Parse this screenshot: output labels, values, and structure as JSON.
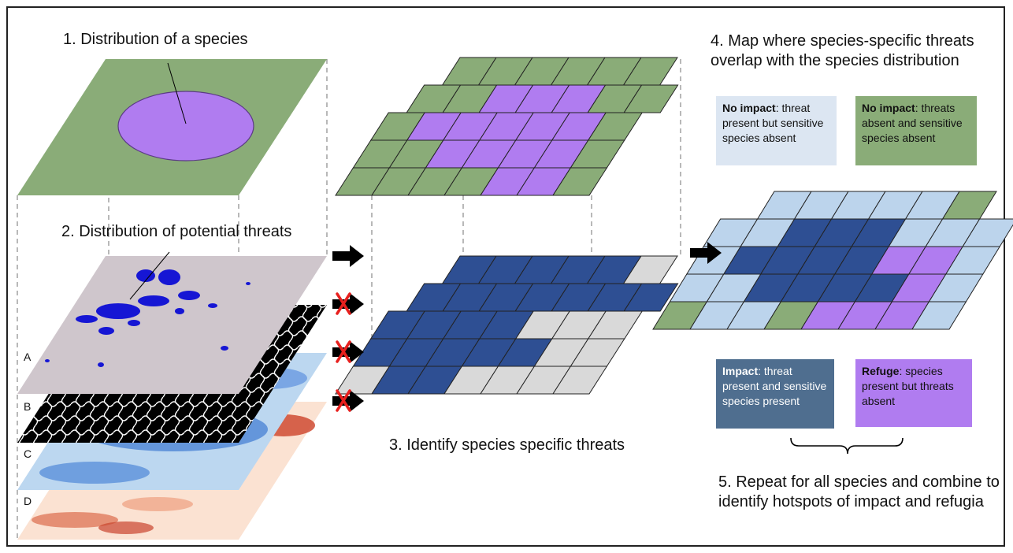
{
  "step1": {
    "text": "1. Distribution of a species"
  },
  "step2": {
    "text": "2. Distribution of potential threats"
  },
  "step3": {
    "text": "3. Identify species specific threats"
  },
  "step4": {
    "text": "4. Map where species-specific threats overlap with the species distribution"
  },
  "step5": {
    "text": "5. Repeat for all species and combine to identify hotspots of impact and refugia"
  },
  "layers": [
    "A",
    "B",
    "C",
    "D"
  ],
  "legend": {
    "no_impact_1": {
      "title": "No impact",
      "text": ": threat present but sensitive species absent",
      "color": "#dce6f2"
    },
    "no_impact_2": {
      "title": "No impact",
      "text": ": threats absent and sensitive species absent",
      "color": "#8aac78"
    },
    "impact": {
      "title": "Impact",
      "text": ": threat present and sensitive species present",
      "color": "#4f6e8f"
    },
    "refuge": {
      "title": "Refuge",
      "text": ": species present but threats absent",
      "color": "#b07cf0"
    }
  },
  "colors": {
    "green": "#8aac78",
    "purple": "#b07cf0",
    "dark_blue": "#2e4f93",
    "light_grey": "#d9d9d9",
    "light_blue": "#bcd4ec",
    "threat_bg": "#cfc6cc",
    "arrow": "#000000",
    "cross": "#e8201e"
  },
  "grids": {
    "species": [
      "GGGGGG",
      "GGPPPGG",
      "GPPPPPG",
      "GGPPPPG",
      "GGGGPPG"
    ],
    "threat": [
      "BBBBBL",
      "BBBBBBB",
      "BBBBLLL",
      "BBBBBLL",
      "LBBLLLL"
    ],
    "overlap": [
      "lllllG",
      "llBBBlll",
      "lBBBBPPl",
      "llBBBBPl",
      "GllGPPPl"
    ]
  }
}
